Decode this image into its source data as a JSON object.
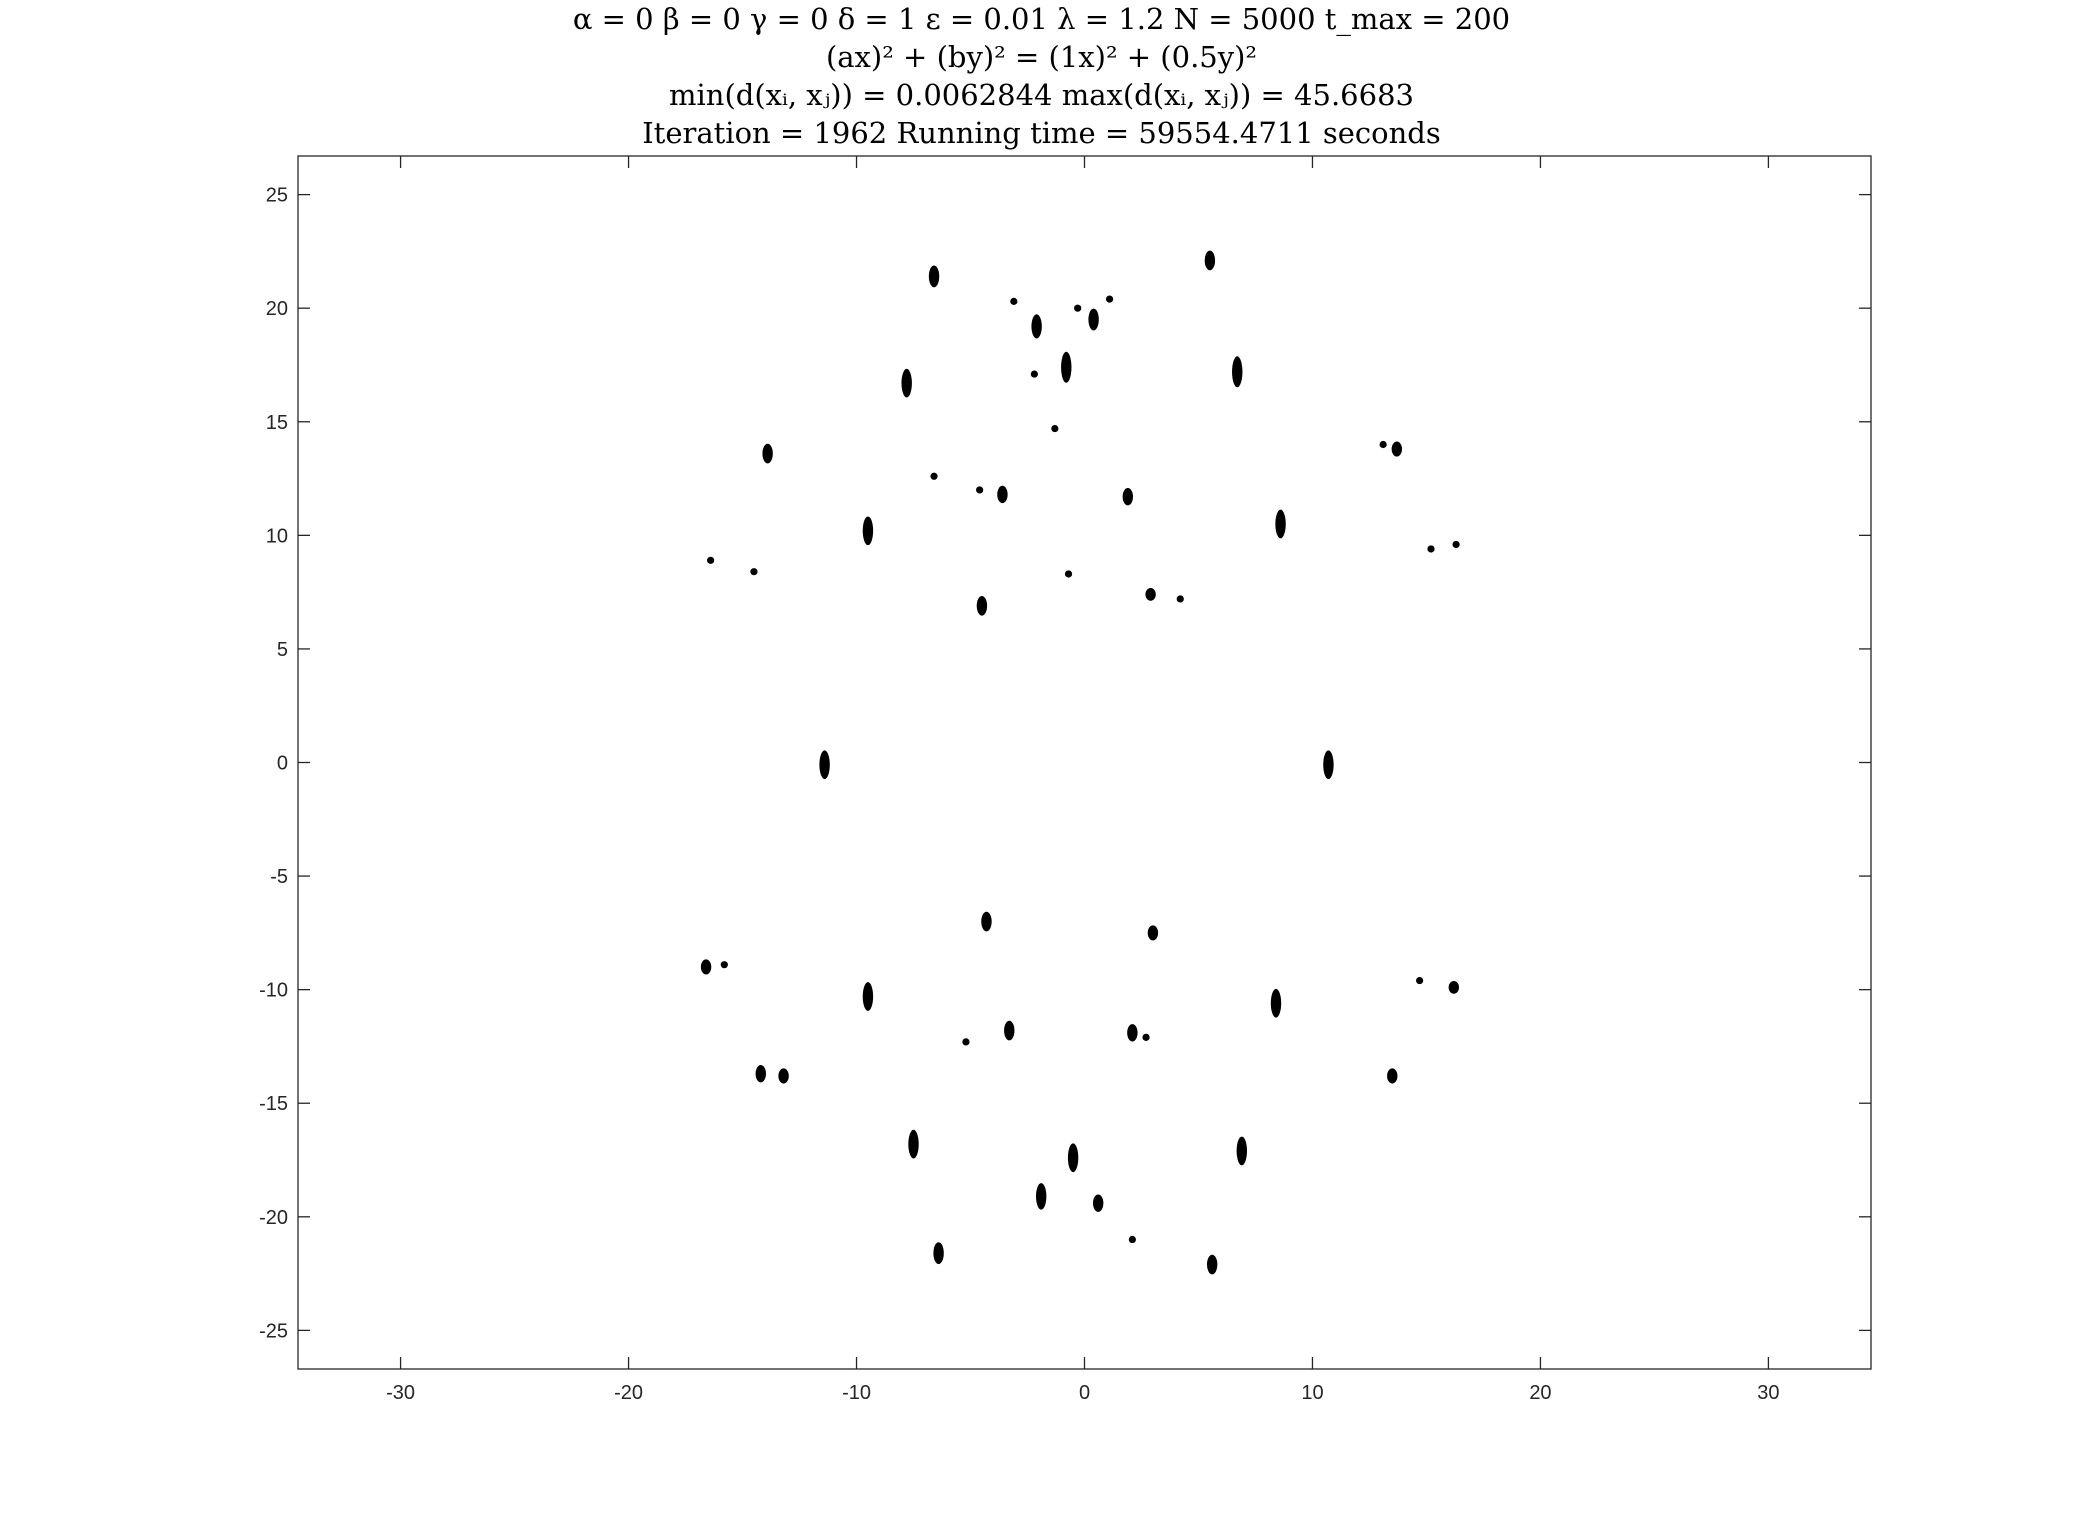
{
  "title_lines": [
    "α = 0    β = 0    γ = 0    δ = 1    ε = 0.01    λ = 1.2    N = 5000    t_max = 200",
    "(ax)² + (by)² = (1x)² + (0.5y)²",
    "min(d(xᵢ, xⱼ)) = 0.0062844    max(d(xᵢ, xⱼ)) = 45.6683",
    "Iteration = 1962    Running time = 59554.4711 seconds"
  ],
  "chart_data": {
    "type": "scatter",
    "xlim": [
      -34.5,
      34.5
    ],
    "ylim": [
      -26.7,
      26.7
    ],
    "xticks": [
      -30,
      -20,
      -10,
      0,
      10,
      20,
      30
    ],
    "yticks": [
      25,
      20,
      15,
      10,
      5,
      0,
      -5,
      -10,
      -15,
      -20,
      -25
    ],
    "grid": false,
    "box": true,
    "marker_color": "#000000",
    "clusters": [
      {
        "x": -6.6,
        "y": 21.4,
        "h": 0.7
      },
      {
        "x": 5.5,
        "y": 22.1,
        "h": 0.6
      },
      {
        "x": -3.1,
        "y": 20.3,
        "h": 0
      },
      {
        "x": -0.3,
        "y": 20.0,
        "h": 0
      },
      {
        "x": 1.1,
        "y": 20.4,
        "h": 0
      },
      {
        "x": -2.1,
        "y": 19.2,
        "h": 0.8
      },
      {
        "x": 0.4,
        "y": 19.5,
        "h": 0.7
      },
      {
        "x": -7.8,
        "y": 16.7,
        "h": 1.0
      },
      {
        "x": -0.8,
        "y": 17.4,
        "h": 1.1
      },
      {
        "x": -2.2,
        "y": 17.1,
        "h": 0
      },
      {
        "x": 6.7,
        "y": 17.2,
        "h": 1.1
      },
      {
        "x": -1.3,
        "y": 14.7,
        "h": 0
      },
      {
        "x": -13.9,
        "y": 13.6,
        "h": 0.6
      },
      {
        "x": 13.1,
        "y": 14.0,
        "h": 0
      },
      {
        "x": 13.7,
        "y": 13.8,
        "h": 0.4
      },
      {
        "x": -6.6,
        "y": 12.6,
        "h": 0
      },
      {
        "x": -4.6,
        "y": 12.0,
        "h": 0
      },
      {
        "x": -3.6,
        "y": 11.8,
        "h": 0.5
      },
      {
        "x": 1.9,
        "y": 11.7,
        "h": 0.5
      },
      {
        "x": -9.5,
        "y": 10.2,
        "h": 1.0
      },
      {
        "x": 8.6,
        "y": 10.5,
        "h": 1.0
      },
      {
        "x": -16.4,
        "y": 8.9,
        "h": 0
      },
      {
        "x": -14.5,
        "y": 8.4,
        "h": 0
      },
      {
        "x": -0.7,
        "y": 8.3,
        "h": 0
      },
      {
        "x": 2.9,
        "y": 7.4,
        "h": 0.3
      },
      {
        "x": 4.2,
        "y": 7.2,
        "h": 0
      },
      {
        "x": -4.5,
        "y": 6.9,
        "h": 0.6
      },
      {
        "x": 15.2,
        "y": 9.4,
        "h": 0
      },
      {
        "x": 16.3,
        "y": 9.6,
        "h": 0
      },
      {
        "x": -11.4,
        "y": -0.1,
        "h": 1.0
      },
      {
        "x": 10.7,
        "y": -0.1,
        "h": 1.0
      },
      {
        "x": -4.3,
        "y": -7.0,
        "h": 0.6
      },
      {
        "x": 3.0,
        "y": -7.5,
        "h": 0.4
      },
      {
        "x": -16.6,
        "y": -9.0,
        "h": 0.4
      },
      {
        "x": -15.8,
        "y": -8.9,
        "h": 0
      },
      {
        "x": -9.5,
        "y": -10.3,
        "h": 1.0
      },
      {
        "x": 8.4,
        "y": -10.6,
        "h": 1.0
      },
      {
        "x": 14.7,
        "y": -9.6,
        "h": 0
      },
      {
        "x": 16.2,
        "y": -9.9,
        "h": 0.3
      },
      {
        "x": -3.3,
        "y": -11.8,
        "h": 0.6
      },
      {
        "x": -5.2,
        "y": -12.3,
        "h": 0
      },
      {
        "x": 2.1,
        "y": -11.9,
        "h": 0.5
      },
      {
        "x": 2.7,
        "y": -12.1,
        "h": 0
      },
      {
        "x": -14.2,
        "y": -13.7,
        "h": 0.5
      },
      {
        "x": -13.2,
        "y": -13.8,
        "h": 0.4
      },
      {
        "x": 13.5,
        "y": -13.8,
        "h": 0.4
      },
      {
        "x": -7.5,
        "y": -16.8,
        "h": 1.0
      },
      {
        "x": -0.5,
        "y": -17.4,
        "h": 1.0
      },
      {
        "x": 6.9,
        "y": -17.1,
        "h": 1.0
      },
      {
        "x": -1.9,
        "y": -19.1,
        "h": 0.9
      },
      {
        "x": 0.6,
        "y": -19.4,
        "h": 0.5
      },
      {
        "x": 2.1,
        "y": -21.0,
        "h": 0
      },
      {
        "x": -6.4,
        "y": -21.6,
        "h": 0.7
      },
      {
        "x": 5.6,
        "y": -22.1,
        "h": 0.6
      }
    ]
  }
}
